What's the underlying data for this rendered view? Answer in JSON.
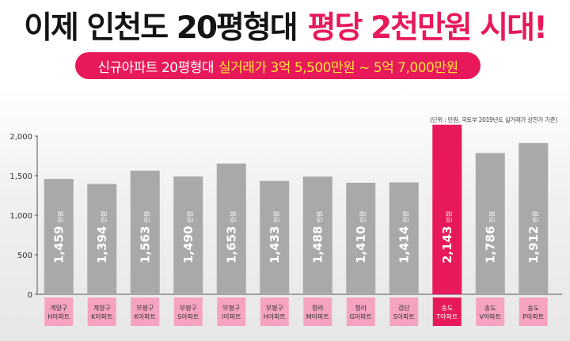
{
  "headline": {
    "main": "이제 인천도 20평형대",
    "accent": "평당 2천만원 시대!"
  },
  "subheadline": {
    "main": "신규아파트 20평형대",
    "accent": "실거래가 3억 5,500만원 ~ 5억 7,000만원"
  },
  "unit_note": "(단위 : 만원, 국토부 2019년도 실거래가 상한가 기준)",
  "colors": {
    "accent": "#e8195a",
    "highlight_text": "#ffe23a",
    "bar": "#a9a9a9",
    "bar_highlight": "#e8195a",
    "label_box": "#f5a3c0"
  },
  "chart_data": {
    "type": "bar",
    "categories": [
      [
        "계양구",
        "H아파트"
      ],
      [
        "계양구",
        "K아파트"
      ],
      [
        "부평구",
        "K아파트"
      ],
      [
        "부평구",
        "S아파트"
      ],
      [
        "부평구",
        "I아파트"
      ],
      [
        "부평구",
        "H아파트"
      ],
      [
        "청라",
        "M아파트"
      ],
      [
        "청라",
        "G아파트"
      ],
      [
        "검단",
        "S아파트"
      ],
      [
        "송도",
        "T아파트"
      ],
      [
        "송도",
        "V아파트"
      ],
      [
        "송도",
        "P아파트"
      ]
    ],
    "values": [
      1459,
      1394,
      1563,
      1490,
      1653,
      1433,
      1488,
      1410,
      1414,
      2143,
      1786,
      1912
    ],
    "data_labels": [
      "1,459",
      "1,394",
      "1,563",
      "1,490",
      "1,653",
      "1,433",
      "1,488",
      "1,410",
      "1,414",
      "2,143",
      "1,786",
      "1,912"
    ],
    "value_unit": "만원",
    "highlight_index": 9,
    "yticks": [
      0,
      500,
      1000,
      1500,
      2000
    ],
    "ytick_labels": [
      "0",
      "500",
      "1,000",
      "1,500",
      "2,000"
    ],
    "ylim": [
      0,
      2000
    ],
    "grid": false,
    "legend": "none"
  }
}
